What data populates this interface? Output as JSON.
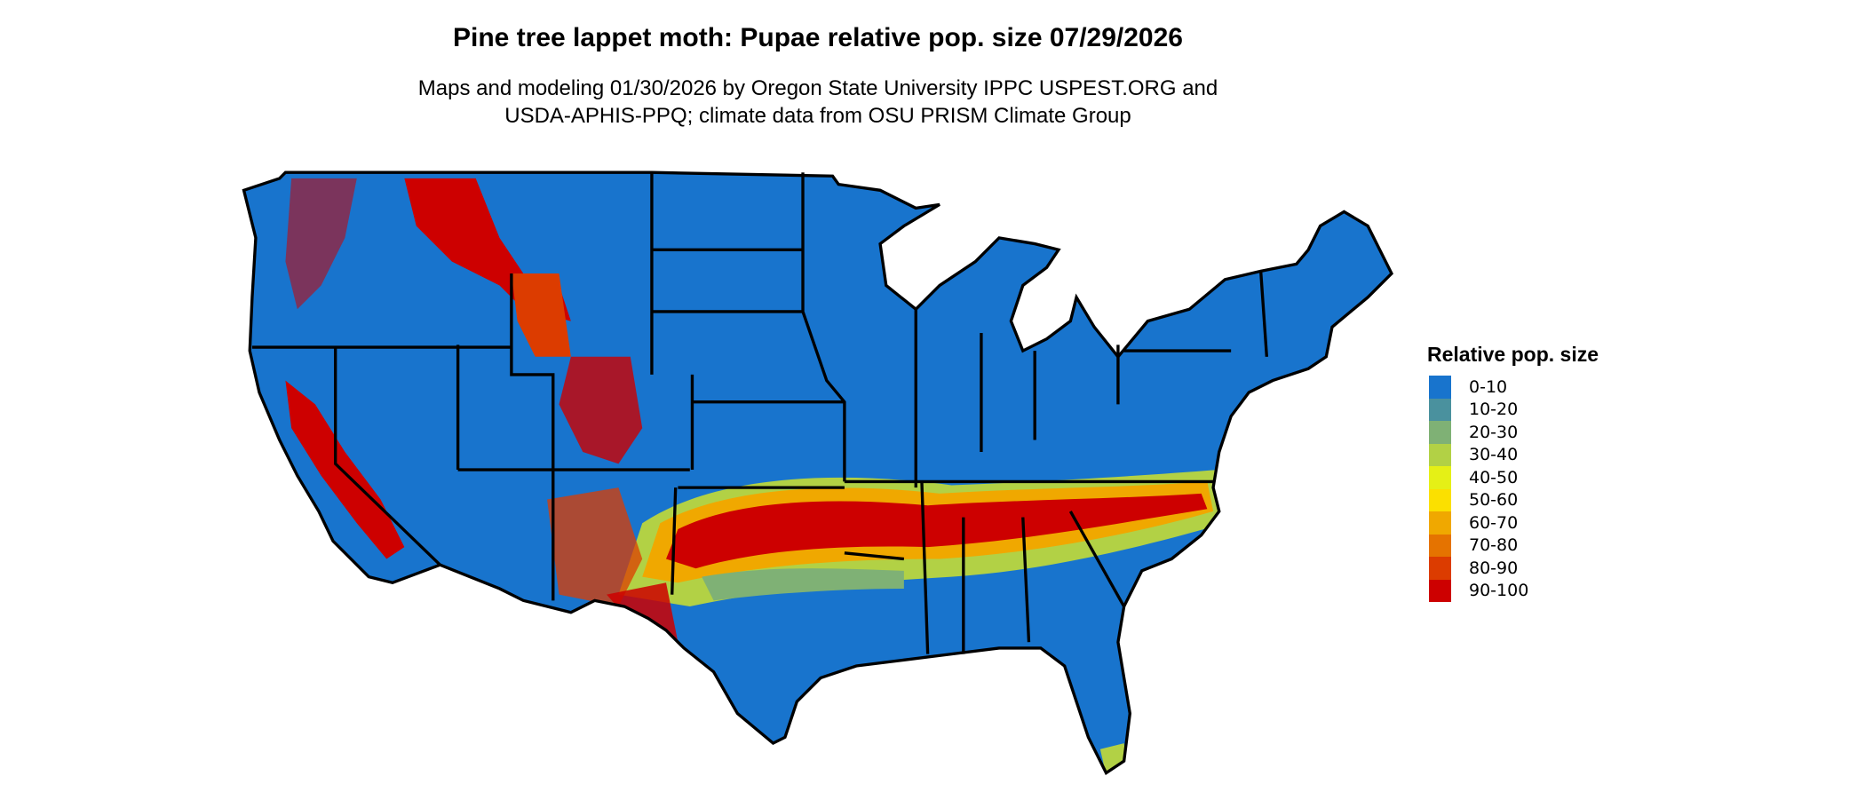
{
  "title": "Pine tree lappet moth: Pupae relative pop. size 07/29/2026",
  "subtitle_line1": "Maps and modeling 01/30/2026 by Oregon State University IPPC USPEST.ORG and",
  "subtitle_line2": "USDA-APHIS-PPQ; climate data from OSU PRISM Climate Group",
  "legend": {
    "title": "Relative pop. size",
    "items": [
      {
        "label": "0-10",
        "color": "#1874CD"
      },
      {
        "label": "10-20",
        "color": "#4A919E"
      },
      {
        "label": "20-30",
        "color": "#7FB175"
      },
      {
        "label": "30-40",
        "color": "#B2D145"
      },
      {
        "label": "40-50",
        "color": "#E5F016"
      },
      {
        "label": "50-60",
        "color": "#FBE000"
      },
      {
        "label": "60-70",
        "color": "#F0A800"
      },
      {
        "label": "70-80",
        "color": "#E57300"
      },
      {
        "label": "80-90",
        "color": "#DC3C00"
      },
      {
        "label": "90-100",
        "color": "#CD0000"
      }
    ]
  },
  "chart_data": {
    "type": "heatmap",
    "region": "contiguous United States",
    "legend_placement": "right",
    "classes": [
      "0-10",
      "10-20",
      "20-30",
      "30-40",
      "40-50",
      "50-60",
      "60-70",
      "70-80",
      "80-90",
      "90-100"
    ]
  }
}
